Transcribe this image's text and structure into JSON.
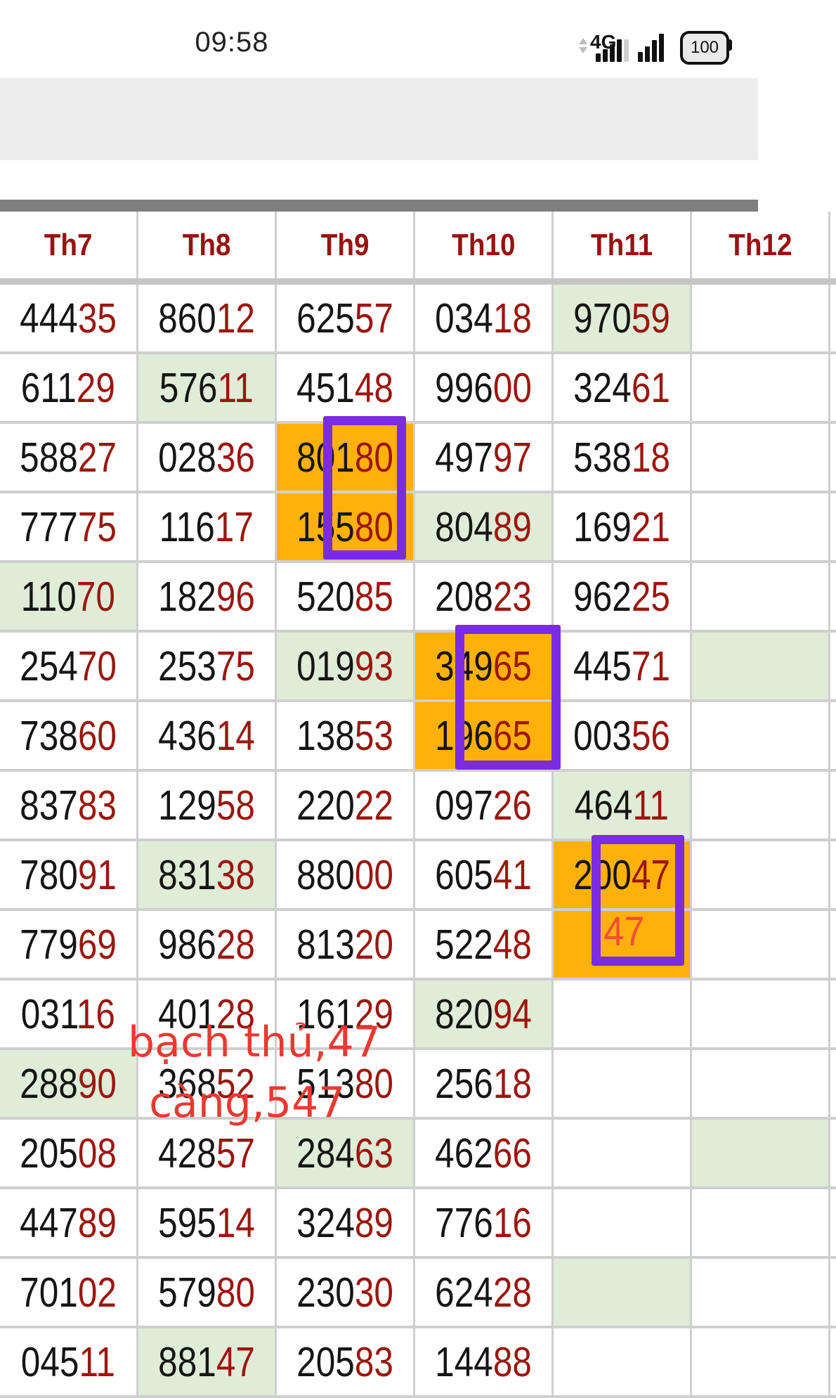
{
  "status_bar": {
    "time": "09:58",
    "network_label": "4G",
    "battery_level": "100",
    "signal1_bars": [
      12,
      18,
      25,
      32
    ],
    "signal2_bars": [
      14,
      22,
      31,
      40
    ]
  },
  "annotations": {
    "line1": "bạch thủ,47",
    "line2": "càng,547",
    "highlight_value": "47"
  },
  "colors": {
    "digit_black": "#151515",
    "digit_red": "#9c160e",
    "header_red": "#9a1111",
    "cell_green": "#dfecd7",
    "cell_orange": "#ffb10b",
    "box_purple": "#7b2be1",
    "annotation_red": "#e93a30",
    "grid_border": "#cfcfcf"
  },
  "table": {
    "headers": [
      "Th7",
      "Th8",
      "Th9",
      "Th10",
      "Th11",
      "Th12"
    ],
    "rows": [
      {
        "cells": [
          {
            "v": "44435",
            "bg": "w"
          },
          {
            "v": "86012",
            "bg": "w"
          },
          {
            "v": "62557",
            "bg": "w"
          },
          {
            "v": "03418",
            "bg": "w"
          },
          {
            "v": "97059",
            "bg": "g"
          },
          {
            "v": "",
            "bg": "w"
          }
        ]
      },
      {
        "cells": [
          {
            "v": "61129",
            "bg": "w"
          },
          {
            "v": "57611",
            "bg": "g"
          },
          {
            "v": "45148",
            "bg": "w"
          },
          {
            "v": "99600",
            "bg": "w"
          },
          {
            "v": "32461",
            "bg": "w"
          },
          {
            "v": "",
            "bg": "w"
          }
        ]
      },
      {
        "cells": [
          {
            "v": "58827",
            "bg": "w"
          },
          {
            "v": "02836",
            "bg": "w"
          },
          {
            "v": "80180",
            "bg": "o"
          },
          {
            "v": "49797",
            "bg": "w"
          },
          {
            "v": "53818",
            "bg": "w"
          },
          {
            "v": "",
            "bg": "w"
          }
        ]
      },
      {
        "cells": [
          {
            "v": "77775",
            "bg": "w"
          },
          {
            "v": "11617",
            "bg": "w"
          },
          {
            "v": "15580",
            "bg": "o"
          },
          {
            "v": "80489",
            "bg": "g"
          },
          {
            "v": "16921",
            "bg": "w"
          },
          {
            "v": "",
            "bg": "w"
          }
        ]
      },
      {
        "cells": [
          {
            "v": "11070",
            "bg": "g"
          },
          {
            "v": "18296",
            "bg": "w"
          },
          {
            "v": "52085",
            "bg": "w"
          },
          {
            "v": "20823",
            "bg": "w"
          },
          {
            "v": "96225",
            "bg": "w"
          },
          {
            "v": "",
            "bg": "w"
          }
        ]
      },
      {
        "cells": [
          {
            "v": "25470",
            "bg": "w"
          },
          {
            "v": "25375",
            "bg": "w"
          },
          {
            "v": "01993",
            "bg": "g"
          },
          {
            "v": "34965",
            "bg": "o"
          },
          {
            "v": "44571",
            "bg": "w"
          },
          {
            "v": "",
            "bg": "g"
          }
        ]
      },
      {
        "cells": [
          {
            "v": "73860",
            "bg": "w"
          },
          {
            "v": "43614",
            "bg": "w"
          },
          {
            "v": "13853",
            "bg": "w"
          },
          {
            "v": "19665",
            "bg": "o"
          },
          {
            "v": "00356",
            "bg": "w"
          },
          {
            "v": "",
            "bg": "w"
          }
        ]
      },
      {
        "cells": [
          {
            "v": "83783",
            "bg": "w"
          },
          {
            "v": "12958",
            "bg": "w"
          },
          {
            "v": "22022",
            "bg": "w"
          },
          {
            "v": "09726",
            "bg": "w"
          },
          {
            "v": "46411",
            "bg": "g"
          },
          {
            "v": "",
            "bg": "w"
          }
        ]
      },
      {
        "cells": [
          {
            "v": "78091",
            "bg": "w"
          },
          {
            "v": "83138",
            "bg": "g"
          },
          {
            "v": "88000",
            "bg": "w"
          },
          {
            "v": "60541",
            "bg": "w"
          },
          {
            "v": "20047",
            "bg": "o"
          },
          {
            "v": "",
            "bg": "w"
          }
        ]
      },
      {
        "cells": [
          {
            "v": "77969",
            "bg": "w"
          },
          {
            "v": "98628",
            "bg": "w"
          },
          {
            "v": "81320",
            "bg": "w"
          },
          {
            "v": "52248",
            "bg": "w"
          },
          {
            "v": "",
            "bg": "o"
          },
          {
            "v": "",
            "bg": "w"
          }
        ]
      },
      {
        "cells": [
          {
            "v": "03116",
            "bg": "w"
          },
          {
            "v": "40128",
            "bg": "w"
          },
          {
            "v": "16129",
            "bg": "w"
          },
          {
            "v": "82094",
            "bg": "g"
          },
          {
            "v": "",
            "bg": "w"
          },
          {
            "v": "",
            "bg": "w"
          }
        ]
      },
      {
        "cells": [
          {
            "v": "28890",
            "bg": "g"
          },
          {
            "v": "36852",
            "bg": "w"
          },
          {
            "v": "51380",
            "bg": "w"
          },
          {
            "v": "25618",
            "bg": "w"
          },
          {
            "v": "",
            "bg": "w"
          },
          {
            "v": "",
            "bg": "w"
          }
        ]
      },
      {
        "cells": [
          {
            "v": "20508",
            "bg": "w"
          },
          {
            "v": "42857",
            "bg": "w"
          },
          {
            "v": "28463",
            "bg": "g"
          },
          {
            "v": "46266",
            "bg": "w"
          },
          {
            "v": "",
            "bg": "w"
          },
          {
            "v": "",
            "bg": "g"
          }
        ]
      },
      {
        "cells": [
          {
            "v": "44789",
            "bg": "w"
          },
          {
            "v": "59514",
            "bg": "w"
          },
          {
            "v": "32489",
            "bg": "w"
          },
          {
            "v": "77616",
            "bg": "w"
          },
          {
            "v": "",
            "bg": "w"
          },
          {
            "v": "",
            "bg": "w"
          }
        ]
      },
      {
        "cells": [
          {
            "v": "70102",
            "bg": "w"
          },
          {
            "v": "57980",
            "bg": "w"
          },
          {
            "v": "23030",
            "bg": "w"
          },
          {
            "v": "62428",
            "bg": "w"
          },
          {
            "v": "",
            "bg": "g"
          },
          {
            "v": "",
            "bg": "w"
          }
        ]
      },
      {
        "cells": [
          {
            "v": "04511",
            "bg": "w"
          },
          {
            "v": "88147",
            "bg": "g"
          },
          {
            "v": "20583",
            "bg": "w"
          },
          {
            "v": "14488",
            "bg": "w"
          },
          {
            "v": "",
            "bg": "w"
          },
          {
            "v": "",
            "bg": "w"
          }
        ]
      }
    ]
  }
}
